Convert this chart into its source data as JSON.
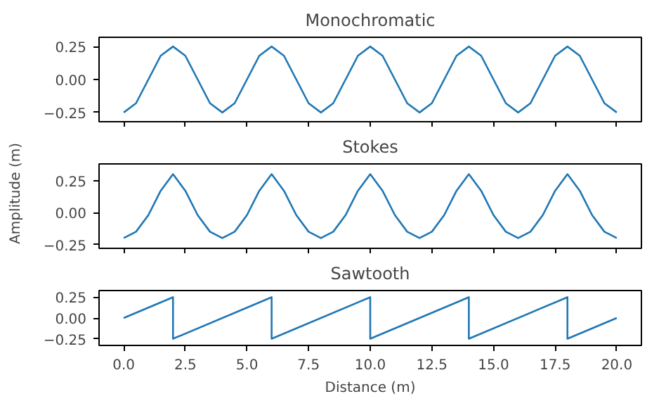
{
  "chart_data": [
    {
      "type": "line",
      "title": "Monochromatic",
      "tick_labels": "y",
      "xlim": [
        -1,
        21
      ],
      "ylim": [
        -0.32,
        0.32
      ],
      "xticks": [
        {
          "value": 0,
          "label": null
        },
        {
          "value": 2.5,
          "label": null
        },
        {
          "value": 5,
          "label": null
        },
        {
          "value": 7.5,
          "label": null
        },
        {
          "value": 10,
          "label": null
        },
        {
          "value": 12.5,
          "label": null
        },
        {
          "value": 15,
          "label": null
        },
        {
          "value": 17.5,
          "label": null
        },
        {
          "value": 20,
          "label": null
        }
      ],
      "yticks": [
        {
          "value": -0.25,
          "label": "−0.25"
        },
        {
          "value": 0,
          "label": "0.00"
        },
        {
          "value": 0.25,
          "label": "0.25"
        }
      ],
      "x": [
        0,
        0.5,
        1,
        1.5,
        2,
        2.5,
        3,
        3.5,
        4,
        4.5,
        5,
        5.5,
        6,
        6.5,
        7,
        7.5,
        8,
        8.5,
        9,
        9.5,
        10,
        10.5,
        11,
        11.5,
        12,
        12.5,
        13,
        13.5,
        14,
        14.5,
        15,
        15.5,
        16,
        16.5,
        17,
        17.5,
        18,
        18.5,
        19,
        19.5,
        20
      ],
      "series": [
        {
          "color": "#1f77b4",
          "values": [
            -0.25,
            -0.18,
            0,
            0.18,
            0.25,
            0.18,
            0,
            -0.18,
            -0.25,
            -0.18,
            0,
            0.18,
            0.25,
            0.18,
            0,
            -0.18,
            -0.25,
            -0.18,
            0,
            0.18,
            0.25,
            0.18,
            0,
            -0.18,
            -0.25,
            -0.18,
            0,
            0.18,
            0.25,
            0.18,
            0,
            -0.18,
            -0.25,
            -0.18,
            0,
            0.18,
            0.25,
            0.18,
            0,
            -0.18,
            -0.25
          ]
        }
      ]
    },
    {
      "type": "line",
      "title": "Stokes",
      "ylabel": "Amplitude (m)",
      "tick_labels": "y",
      "xlim": [
        -1,
        21
      ],
      "ylim": [
        -0.28,
        0.38
      ],
      "xticks": [
        {
          "value": 0,
          "label": null
        },
        {
          "value": 2.5,
          "label": null
        },
        {
          "value": 5,
          "label": null
        },
        {
          "value": 7.5,
          "label": null
        },
        {
          "value": 10,
          "label": null
        },
        {
          "value": 12.5,
          "label": null
        },
        {
          "value": 15,
          "label": null
        },
        {
          "value": 17.5,
          "label": null
        },
        {
          "value": 20,
          "label": null
        }
      ],
      "yticks": [
        {
          "value": -0.25,
          "label": "−0.25"
        },
        {
          "value": 0,
          "label": "0.00"
        },
        {
          "value": 0.25,
          "label": "0.25"
        }
      ],
      "x": [
        0,
        0.5,
        1,
        1.5,
        2,
        2.5,
        3,
        3.5,
        4,
        4.5,
        5,
        5.5,
        6,
        6.5,
        7,
        7.5,
        8,
        8.5,
        9,
        9.5,
        10,
        10.5,
        11,
        11.5,
        12,
        12.5,
        13,
        13.5,
        14,
        14.5,
        15,
        15.5,
        16,
        16.5,
        17,
        17.5,
        18,
        18.5,
        19,
        19.5,
        20
      ],
      "series": [
        {
          "color": "#1f77b4",
          "values": [
            -0.2,
            -0.15,
            -0.02,
            0.17,
            0.3,
            0.17,
            -0.02,
            -0.15,
            -0.2,
            -0.15,
            -0.02,
            0.17,
            0.3,
            0.17,
            -0.02,
            -0.15,
            -0.2,
            -0.15,
            -0.02,
            0.17,
            0.3,
            0.17,
            -0.02,
            -0.15,
            -0.2,
            -0.15,
            -0.02,
            0.17,
            0.3,
            0.17,
            -0.02,
            -0.15,
            -0.2,
            -0.15,
            -0.02,
            0.17,
            0.3,
            0.17,
            -0.02,
            -0.15,
            -0.2
          ]
        }
      ]
    },
    {
      "type": "line",
      "title": "Sawtooth",
      "xlabel": "Distance (m)",
      "xlim": [
        -1,
        21
      ],
      "ylim": [
        -0.33,
        0.33
      ],
      "xticks": [
        {
          "value": 0,
          "label": "0.0"
        },
        {
          "value": 2.5,
          "label": "2.5"
        },
        {
          "value": 5,
          "label": "5.0"
        },
        {
          "value": 7.5,
          "label": "7.5"
        },
        {
          "value": 10,
          "label": "10.0"
        },
        {
          "value": 12.5,
          "label": "12.5"
        },
        {
          "value": 15,
          "label": "15.0"
        },
        {
          "value": 17.5,
          "label": "17.5"
        },
        {
          "value": 20,
          "label": "20.0"
        }
      ],
      "yticks": [
        {
          "value": -0.25,
          "label": "−0.25"
        },
        {
          "value": 0,
          "label": "0.00"
        },
        {
          "value": 0.25,
          "label": "0.25"
        }
      ],
      "x": [
        0,
        2,
        2,
        6,
        6,
        10,
        10,
        14,
        14,
        18,
        18,
        20
      ],
      "series": [
        {
          "color": "#1f77b4",
          "values": [
            0,
            0.25,
            -0.25,
            0.25,
            -0.25,
            0.25,
            -0.25,
            0.25,
            -0.25,
            0.25,
            -0.25,
            0
          ]
        }
      ]
    }
  ]
}
